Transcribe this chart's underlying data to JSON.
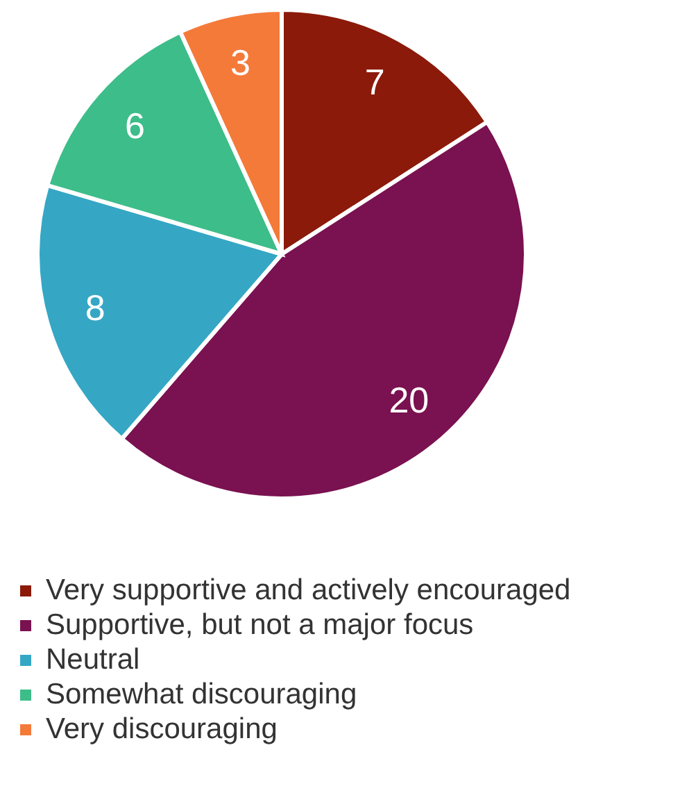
{
  "chart_data": {
    "type": "pie",
    "categories": [
      "Very supportive and actively encouraged",
      "Supportive, but not a major focus",
      "Neutral",
      "Somewhat discouraging",
      "Very discouraging"
    ],
    "values": [
      7,
      20,
      8,
      6,
      3
    ],
    "colors": [
      "#8b1a0a",
      "#7a1150",
      "#35a7c4",
      "#3dbd8a",
      "#f47a3a"
    ],
    "data_labels": true,
    "legend": "bottom"
  }
}
